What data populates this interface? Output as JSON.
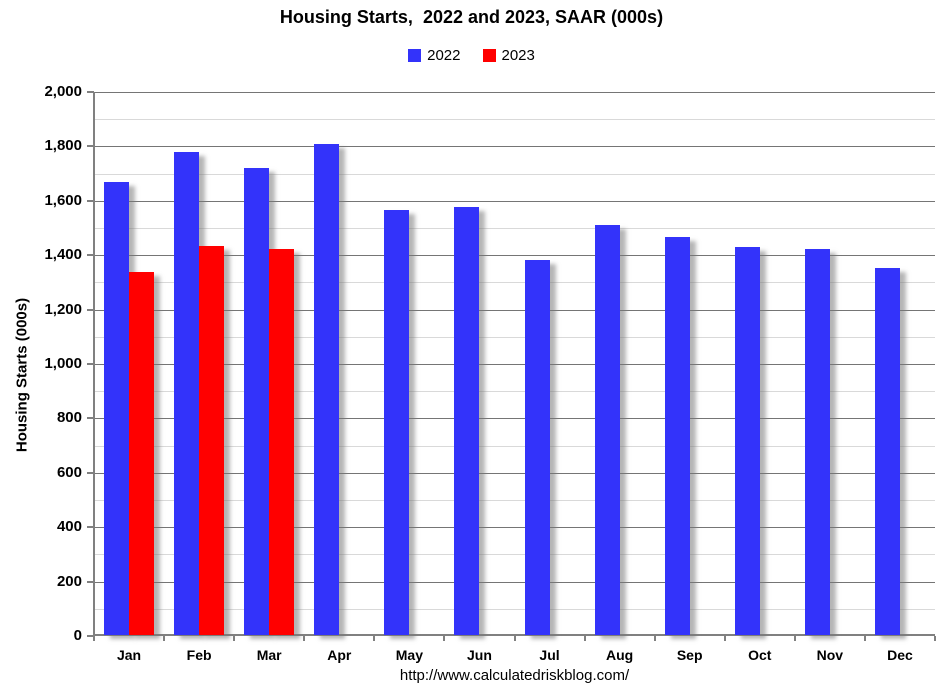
{
  "page": {
    "title": "Housing Starts,  2022 and 2023, SAAR (000s)",
    "footer_url": "http://www.calculatedriskblog.com/"
  },
  "legend": {
    "items": [
      {
        "label": "2022",
        "color": "#3333fa"
      },
      {
        "label": "2023",
        "color": "#ff0000"
      }
    ]
  },
  "chart_data": {
    "type": "bar",
    "title": "Housing Starts,  2022 and 2023, SAAR (000s)",
    "categories": [
      "Jan",
      "Feb",
      "Mar",
      "Apr",
      "May",
      "Jun",
      "Jul",
      "Aug",
      "Sep",
      "Oct",
      "Nov",
      "Dec"
    ],
    "series": [
      {
        "name": "2022",
        "color": "#3333fa",
        "values": [
          1666,
          1775,
          1716,
          1805,
          1562,
          1573,
          1380,
          1508,
          1463,
          1426,
          1418,
          1348
        ]
      },
      {
        "name": "2023",
        "color": "#ff0000",
        "values": [
          1334,
          1430,
          1420,
          null,
          null,
          null,
          null,
          null,
          null,
          null,
          null,
          null
        ]
      }
    ],
    "xlabel": "",
    "ylabel": "Housing Starts (000s)",
    "ylim": [
      0,
      2000
    ],
    "y_major_step": 200,
    "y_minor_step": 100,
    "y_tick_labels": [
      "0",
      "200",
      "400",
      "600",
      "800",
      "1,000",
      "1,200",
      "1,400",
      "1,600",
      "1,800",
      "2,000"
    ],
    "grid": true,
    "legend_position": "top-center",
    "bar_shadow": true
  }
}
